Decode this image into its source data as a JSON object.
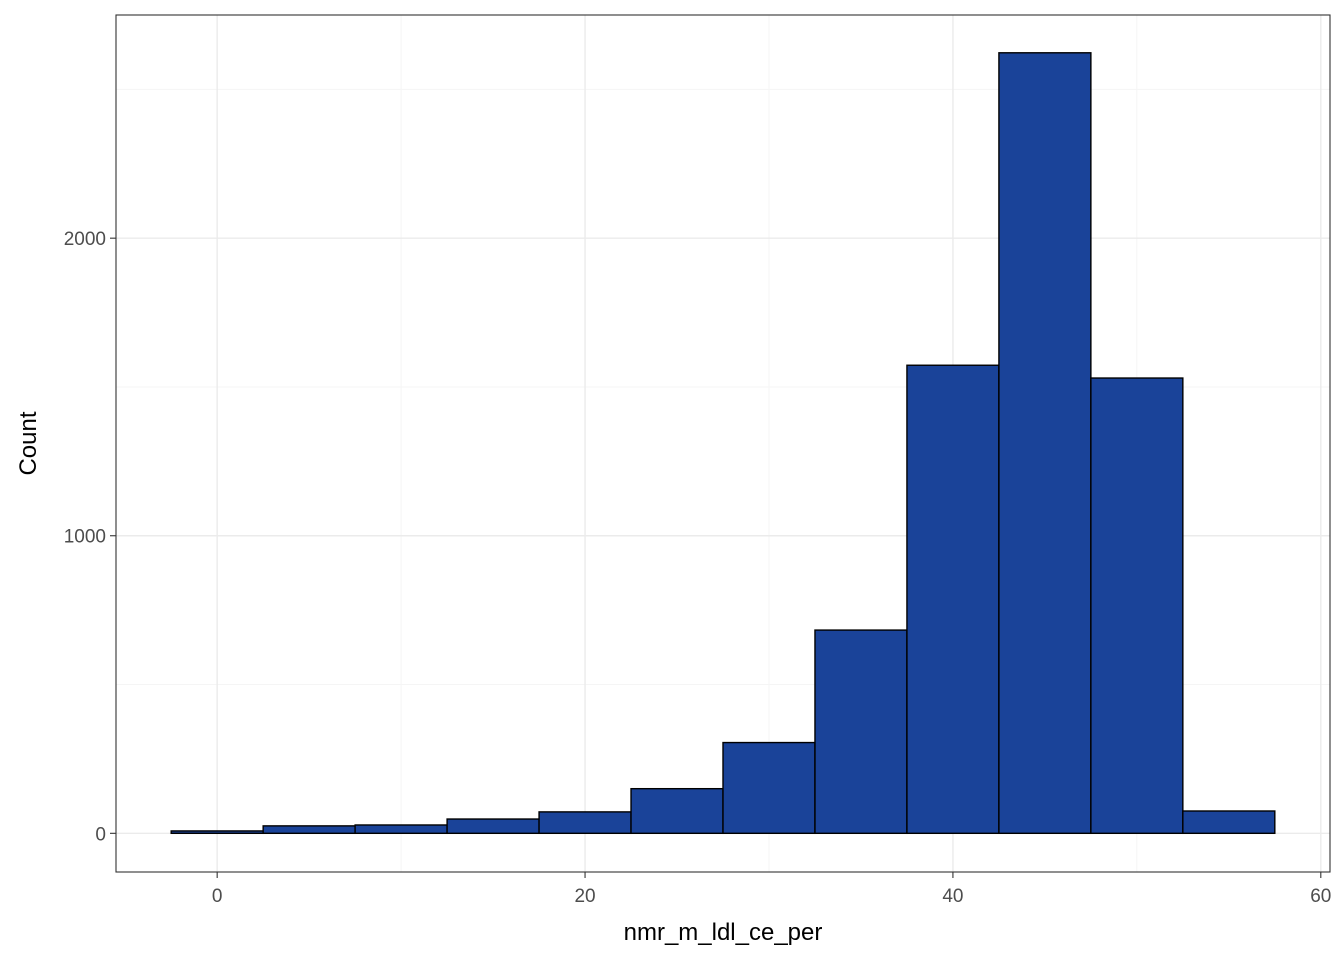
{
  "chart_data": {
    "type": "bar",
    "subtype": "histogram",
    "title": "",
    "xlabel": "nmr_m_ldl_ce_per",
    "ylabel": "Count",
    "bin_width": 5,
    "bins": [
      {
        "start": -2.5,
        "end": 2.5,
        "count": 8
      },
      {
        "start": 2.5,
        "end": 7.5,
        "count": 25
      },
      {
        "start": 7.5,
        "end": 12.5,
        "count": 28
      },
      {
        "start": 12.5,
        "end": 17.5,
        "count": 48
      },
      {
        "start": 17.5,
        "end": 22.5,
        "count": 72
      },
      {
        "start": 22.5,
        "end": 27.5,
        "count": 150
      },
      {
        "start": 27.5,
        "end": 32.5,
        "count": 305
      },
      {
        "start": 32.5,
        "end": 37.5,
        "count": 683
      },
      {
        "start": 37.5,
        "end": 42.5,
        "count": 1573
      },
      {
        "start": 42.5,
        "end": 47.5,
        "count": 2623
      },
      {
        "start": 47.5,
        "end": 52.5,
        "count": 1530
      },
      {
        "start": 52.5,
        "end": 57.5,
        "count": 75
      }
    ],
    "xlim": [
      -5.5,
      60.5
    ],
    "ylim": [
      -130,
      2750
    ],
    "x_ticks": [
      0,
      20,
      40,
      60
    ],
    "x_tick_labels": [
      "0",
      "20",
      "40",
      "60"
    ],
    "y_ticks": [
      0,
      1000,
      2000
    ],
    "y_tick_labels": [
      "0",
      "1000",
      "2000"
    ],
    "grid": true,
    "legend": "none",
    "colors": {
      "bar_fill": "#1a4399",
      "bar_stroke": "#000000",
      "grid_major": "#ebebeb",
      "grid_minor": "#f5f5f5",
      "panel_border": "#333333",
      "tick_text": "#4d4d4d"
    }
  }
}
